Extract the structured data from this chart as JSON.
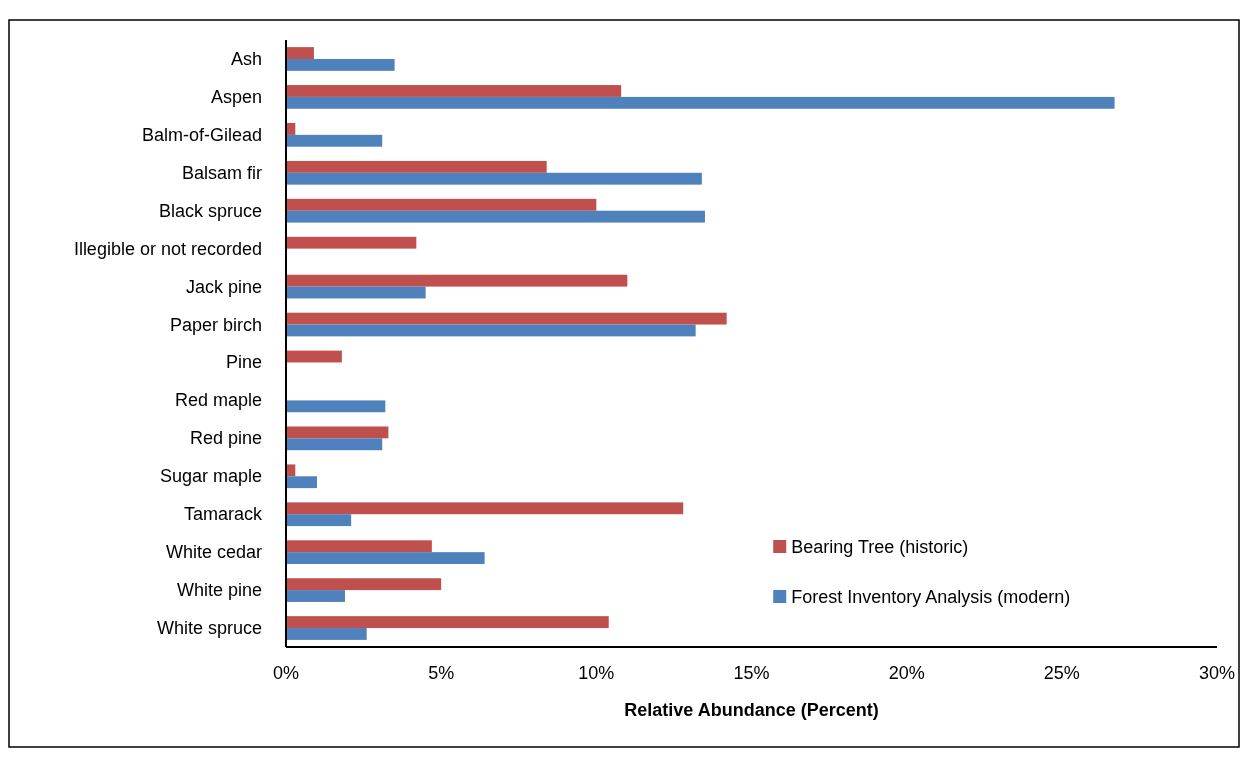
{
  "chart_data": {
    "type": "bar",
    "orientation": "horizontal",
    "xlabel": "Relative Abundance (Percent)",
    "categories": [
      "Ash",
      "Aspen",
      "Balm-of-Gilead",
      "Balsam fir",
      "Black spruce",
      "Illegible or not recorded",
      "Jack pine",
      "Paper birch",
      "Pine",
      "Red maple",
      "Red pine",
      "Sugar maple",
      "Tamarack",
      "White cedar",
      "White pine",
      "White spruce"
    ],
    "series": [
      {
        "name": "Bearing Tree (historic)",
        "color": "#c0504d",
        "values": [
          0.9,
          10.8,
          0.3,
          8.4,
          10.0,
          4.2,
          11.0,
          14.2,
          1.8,
          null,
          3.3,
          0.3,
          12.8,
          4.7,
          5.0,
          10.4
        ]
      },
      {
        "name": "Forest Inventory Analysis (modern)",
        "color": "#4f81bd",
        "values": [
          3.5,
          26.7,
          3.1,
          13.4,
          13.5,
          null,
          4.5,
          13.2,
          null,
          3.2,
          3.1,
          1.0,
          2.1,
          6.4,
          1.9,
          2.6
        ]
      }
    ],
    "xlim": [
      0,
      30
    ],
    "xticks": [
      {
        "value": 0,
        "label": "0%"
      },
      {
        "value": 5,
        "label": "5%"
      },
      {
        "value": 10,
        "label": "10%"
      },
      {
        "value": 15,
        "label": "15%"
      },
      {
        "value": 20,
        "label": "20%"
      },
      {
        "value": 25,
        "label": "25%"
      },
      {
        "value": 30,
        "label": "30%"
      }
    ],
    "legend": "bottom right",
    "grid": false
  }
}
